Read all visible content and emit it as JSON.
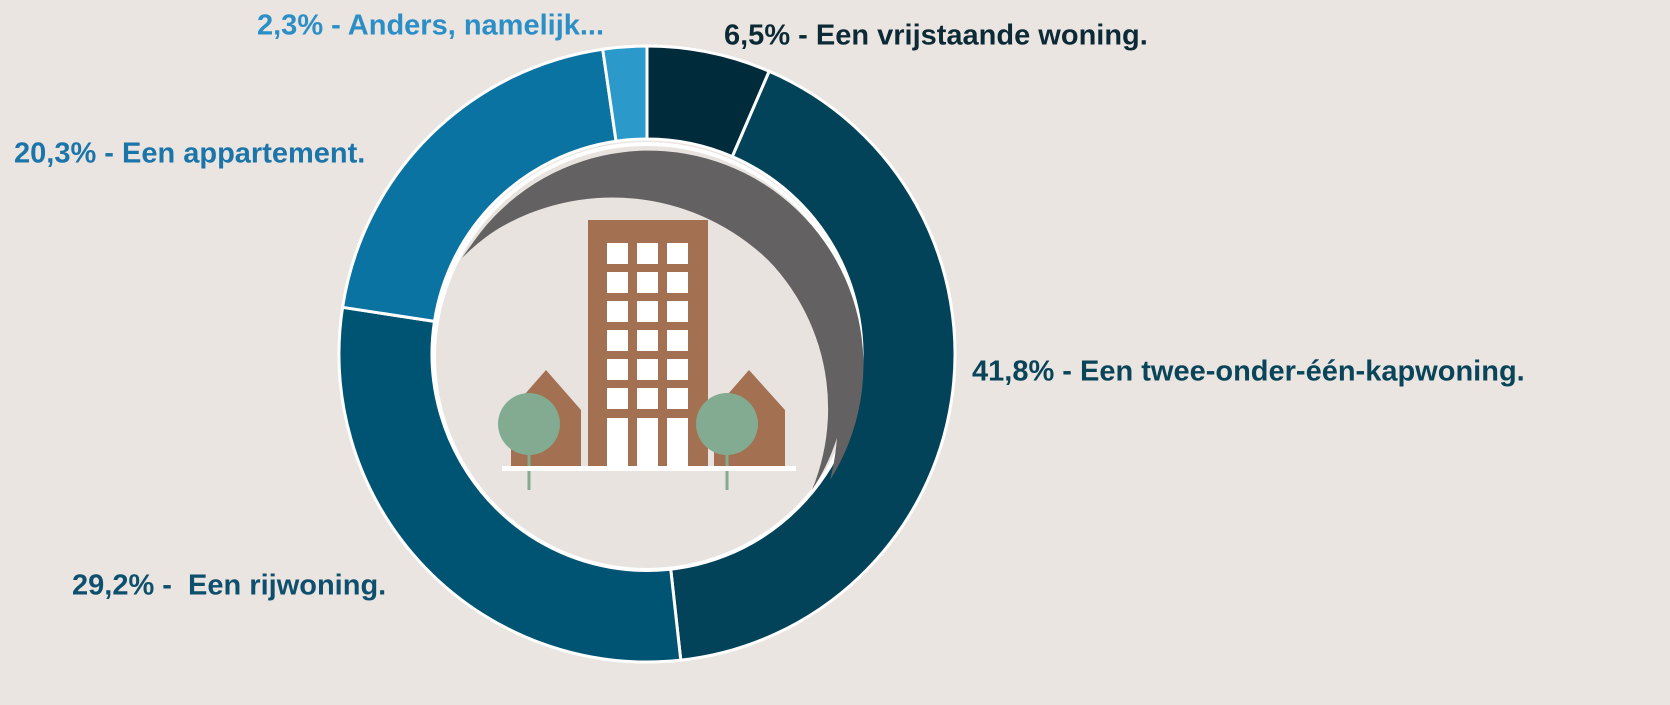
{
  "chart_data": {
    "type": "pie",
    "donut": true,
    "values": [
      6.5,
      41.8,
      29.2,
      20.3,
      2.3
    ],
    "value_labels": [
      "6,5% - Een vrijstaande woning.",
      "41,8% - Een twee-onder-één-kapwoning.",
      "29,2% -  Een rijwoning.",
      "20,3% - Een appartement.",
      "2,3% - Anders, namelijk..."
    ],
    "colors": [
      "#002b3b",
      "#03435a",
      "#005473",
      "#0b73a2",
      "#2b9acb"
    ],
    "label_colors": [
      "#0c2a36",
      "#0a4459",
      "#0e4f6d",
      "#1b75a8",
      "#2b8fc6"
    ]
  }
}
